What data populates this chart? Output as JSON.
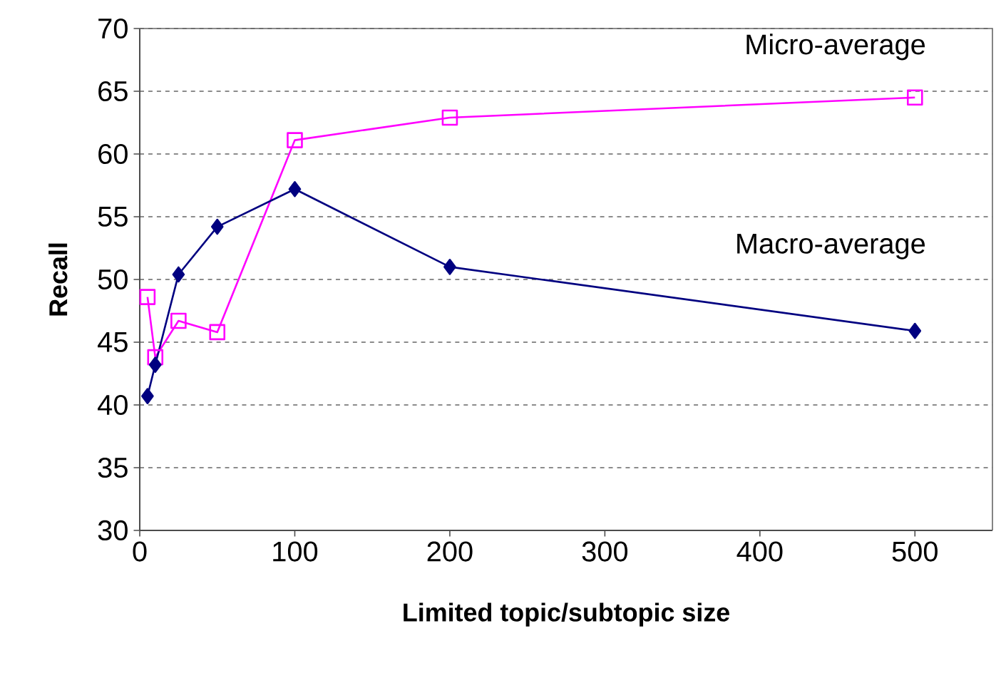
{
  "chart_data": {
    "type": "line",
    "xlabel": "Limited topic/subtopic size",
    "ylabel": "Recall",
    "x": [
      5,
      10,
      25,
      50,
      100,
      200,
      500
    ],
    "series": [
      {
        "name": "Micro-average",
        "color": "#ff00ff",
        "marker": "square",
        "values": [
          48.6,
          43.8,
          46.7,
          45.8,
          61.1,
          62.9,
          64.5
        ]
      },
      {
        "name": "Macro-average",
        "color": "#000080",
        "marker": "diamond",
        "values": [
          40.7,
          43.2,
          50.4,
          54.2,
          57.2,
          51.0,
          45.9
        ]
      }
    ],
    "xlim": [
      0,
      550
    ],
    "xticks": [
      0,
      100,
      200,
      300,
      400,
      500
    ],
    "ylim": [
      30,
      70
    ],
    "yticks": [
      30,
      35,
      40,
      45,
      50,
      55,
      60,
      65,
      70
    ],
    "grid": "y"
  }
}
